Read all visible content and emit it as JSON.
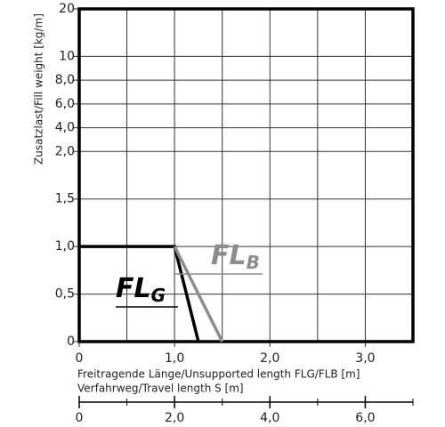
{
  "chart_data": {
    "type": "line",
    "ylabel": "Zusatzlast/Fill weight [kg/m]",
    "xlabel": "Freitragende Länge/Unsupported length FLG/FLB [m]",
    "x2label": "Verfahrweg/Travel length S [m]",
    "xlim": [
      0,
      3.5
    ],
    "xticks": [
      0,
      {
        "value": 1,
        "label": "1,0"
      },
      {
        "value": 2,
        "label": "2,0"
      },
      {
        "value": 3,
        "label": "3,0"
      }
    ],
    "x2lim": [
      0,
      7
    ],
    "x2ticks": [
      0,
      {
        "value": 2,
        "label": "2,0"
      },
      {
        "value": 4,
        "label": "4,0"
      },
      {
        "value": 6,
        "label": "6,0"
      }
    ],
    "ylim": [
      0,
      20
    ],
    "yticks": [
      0,
      {
        "value": 0.5,
        "label": "0,5"
      },
      {
        "value": 1,
        "label": "1,0"
      },
      {
        "value": 1.5,
        "label": "1,5"
      },
      {
        "value": 2,
        "label": "2,0"
      },
      {
        "value": 4,
        "label": "4,0"
      },
      {
        "value": 6,
        "label": "6,0"
      },
      {
        "value": 8,
        "label": "8,0"
      },
      10,
      20
    ],
    "grid": true,
    "series": [
      {
        "name": "FL",
        "name_sub": "G",
        "color": "#000000",
        "x": [
          0,
          1,
          1.25
        ],
        "values": [
          1,
          1,
          0
        ]
      },
      {
        "name": "FL",
        "name_sub": "B",
        "color": "#8c8c8c",
        "x": [
          1,
          1.5
        ],
        "values": [
          1,
          0
        ]
      }
    ]
  }
}
